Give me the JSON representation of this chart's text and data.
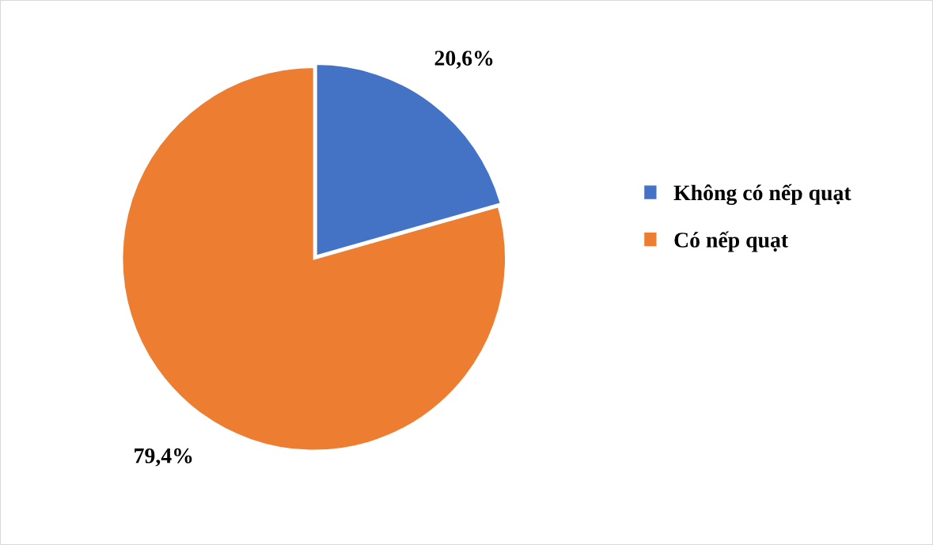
{
  "chart_data": {
    "type": "pie",
    "categories": [
      "Không có nếp quạt",
      "Có nếp quạt"
    ],
    "values": [
      20.6,
      79.4
    ],
    "colors": [
      "#4472c4",
      "#ed7d31"
    ],
    "value_labels": [
      "20,6%",
      "79,4%"
    ],
    "legend": "right"
  }
}
